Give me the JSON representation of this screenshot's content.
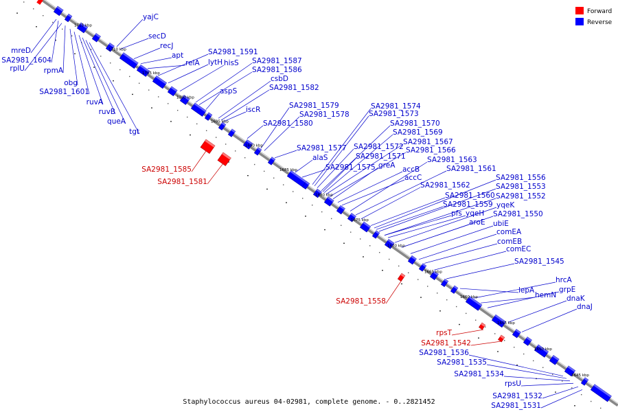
{
  "caption": "Staphylococcus aureus 04-02981, complete genome. - 0..2821452",
  "legend": {
    "forward_label": "Forward",
    "reverse_label": "Reverse",
    "forward_color": "#ff0000",
    "reverse_color": "#0000ff"
  },
  "kbp_ticks": [
    "1715 kbp",
    "1710 kbp",
    "1705 kbp",
    "1700 kbp",
    "1695 kbp",
    "1690 kbp",
    "1685 kbp",
    "1680 kbp",
    "1675 kbp",
    "1670 kbp",
    "1665 kbp",
    "1660 kbp",
    "1655 kbp",
    "1650 kbp",
    "1645 kbp"
  ],
  "reverse_genes_upper": [
    "yajC",
    "secD",
    "recJ",
    "apt",
    "relA",
    "lytH",
    "hisS",
    "SA2981_1591",
    "SA2981_1587",
    "SA2981_1586",
    "aspS",
    "csbD",
    "SA2981_1582",
    "iscR",
    "SA2981_1579",
    "SA2981_1578",
    "SA2981_1580",
    "SA2981_1577",
    "alaS",
    "SA2981_1575",
    "SA2981_1574",
    "SA2981_1573",
    "SA2981_1570",
    "SA2981_1569",
    "SA2981_1572",
    "SA2981_1571",
    "SA2981_1567",
    "SA2981_1566",
    "greA",
    "accB",
    "accC",
    "SA2981_1563",
    "SA2981_1561",
    "SA2981_1562",
    "SA2981_1556",
    "SA2981_1553",
    "SA2981_1552",
    "SA2981_1560",
    "SA2981_1559",
    "yqeK",
    "pfs",
    "yqeH",
    "SA2981_1550",
    "aroE",
    "ubiE",
    "comEA",
    "comEB",
    "comEC",
    "SA2981_1545",
    "lepA",
    "hrcA",
    "hemN",
    "grpE",
    "dnaK",
    "dnaJ"
  ],
  "reverse_genes_lower": [
    "mreD",
    "SA2981_1604",
    "rplU",
    "rpmA",
    "obg",
    "SA2981_1601",
    "ruvA",
    "ruvB",
    "queA",
    "tgt",
    "SA2981_1536",
    "SA2981_1535",
    "SA2981_1534",
    "rpsU",
    "SA2981_1532",
    "SA2981_1531"
  ],
  "forward_genes": [
    "SA2981_1585",
    "SA2981_1581",
    "SA2981_1558",
    "rpsT",
    "SA2981_1542"
  ]
}
